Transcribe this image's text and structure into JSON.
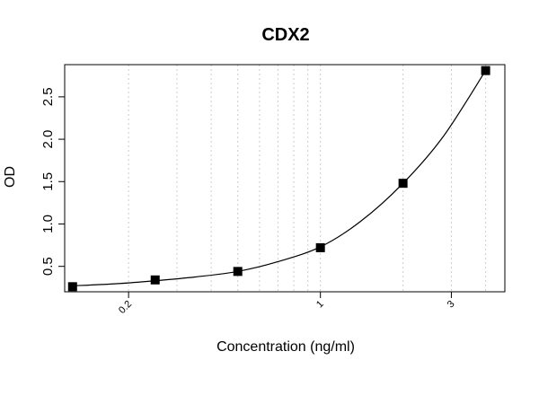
{
  "chart_data": {
    "type": "scatter",
    "title": "CDX2",
    "xlabel": "Concentration (ng/ml)",
    "ylabel": "OD",
    "x_scale": "log",
    "xlim": [
      0.117,
      4.7
    ],
    "ylim": [
      0.2,
      2.88
    ],
    "x_ticks": [
      {
        "value": 0.2,
        "label": "0.2"
      },
      {
        "value": 1,
        "label": "1"
      },
      {
        "value": 3,
        "label": "3"
      }
    ],
    "y_ticks": [
      {
        "value": 0.5,
        "label": "0.5"
      },
      {
        "value": 1.0,
        "label": "1.0"
      },
      {
        "value": 1.5,
        "label": "1.5"
      },
      {
        "value": 2.0,
        "label": "2.0"
      },
      {
        "value": 2.5,
        "label": "2.5"
      }
    ],
    "x_gridlines": [
      0.2,
      0.3,
      0.4,
      0.5,
      0.6,
      0.7,
      0.8,
      0.9,
      1,
      2,
      3,
      4
    ],
    "grid": "vertical-dotted",
    "series": [
      {
        "marker": "square",
        "color": "#000000",
        "x": [
          0.125,
          0.25,
          0.5,
          1,
          2,
          4
        ],
        "y": [
          0.26,
          0.34,
          0.44,
          0.72,
          1.48,
          2.81
        ]
      }
    ],
    "fit_curve": {
      "color": "#000000",
      "x": [
        0.125,
        0.18,
        0.25,
        0.35,
        0.5,
        0.7,
        1,
        1.4,
        2,
        2.8,
        4
      ],
      "y": [
        0.27,
        0.295,
        0.33,
        0.375,
        0.44,
        0.555,
        0.73,
        1.03,
        1.48,
        2.03,
        2.81
      ]
    }
  }
}
